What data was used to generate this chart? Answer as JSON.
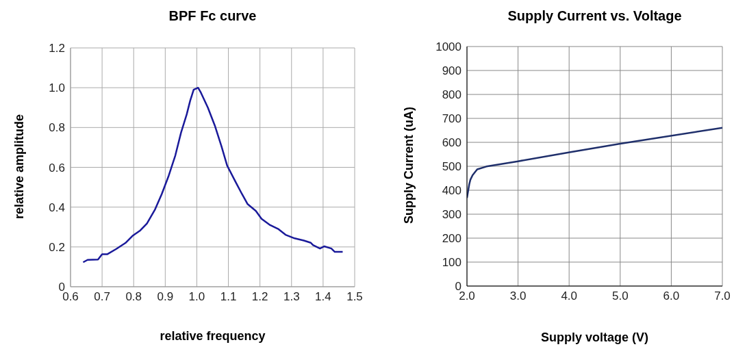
{
  "chart_data": [
    {
      "type": "line",
      "title": "BPF Fc curve",
      "xlabel": "relative frequency",
      "ylabel": "relative amplitude",
      "color": "#1a1a9a",
      "grid": true,
      "marker": "none",
      "x": [
        0.64,
        0.654,
        0.687,
        0.7,
        0.716,
        0.745,
        0.774,
        0.796,
        0.821,
        0.842,
        0.867,
        0.889,
        0.911,
        0.932,
        0.95,
        0.968,
        0.979,
        0.99,
        1.004,
        1.013,
        1.035,
        1.057,
        1.078,
        1.096,
        1.122,
        1.143,
        1.161,
        1.187,
        1.205,
        1.23,
        1.259,
        1.281,
        1.31,
        1.339,
        1.361,
        1.368,
        1.39,
        1.404,
        1.426,
        1.437,
        1.462
      ],
      "values": [
        0.123,
        0.135,
        0.137,
        0.163,
        0.163,
        0.19,
        0.22,
        0.255,
        0.283,
        0.318,
        0.386,
        0.466,
        0.558,
        0.66,
        0.774,
        0.866,
        0.935,
        0.99,
        1.0,
        0.975,
        0.9,
        0.81,
        0.706,
        0.609,
        0.529,
        0.466,
        0.415,
        0.381,
        0.341,
        0.312,
        0.289,
        0.261,
        0.243,
        0.232,
        0.221,
        0.209,
        0.192,
        0.203,
        0.192,
        0.175,
        0.175
      ],
      "xlim": [
        0.6,
        1.5
      ],
      "xticks": [
        0.6,
        0.7,
        0.8,
        0.9,
        {
          "value": 1.0,
          "label": "1.0"
        },
        1.1,
        1.2,
        1.3,
        1.4,
        1.5
      ],
      "ylim": [
        0,
        1.2
      ],
      "yticks": [
        0,
        0.2,
        0.4,
        0.6,
        0.8,
        {
          "value": 1.0,
          "label": "1.0"
        },
        1.2
      ]
    },
    {
      "type": "line",
      "title": "Supply Current vs. Voltage",
      "xlabel": "Supply voltage (V)",
      "ylabel": "Supply Current (uA)",
      "color": "#1f2f6b",
      "grid": true,
      "marker": "none",
      "x": [
        2.0,
        2.045,
        2.067,
        2.11,
        2.2,
        2.38,
        3.0,
        4.03,
        5.0,
        7.0
      ],
      "values": [
        368,
        425,
        444,
        463,
        487,
        499,
        521,
        559,
        594,
        661
      ],
      "xlim": [
        2.0,
        7.0
      ],
      "xticks": [
        {
          "value": 2,
          "label": "2.0"
        },
        {
          "value": 3,
          "label": "3.0"
        },
        {
          "value": 4,
          "label": "4.0"
        },
        {
          "value": 5,
          "label": "5.0"
        },
        {
          "value": 6,
          "label": "6.0"
        },
        {
          "value": 7,
          "label": "7.0"
        }
      ],
      "ylim": [
        0,
        1000
      ],
      "yticks": [
        0,
        100,
        200,
        300,
        400,
        500,
        600,
        700,
        800,
        900,
        1000
      ]
    }
  ]
}
